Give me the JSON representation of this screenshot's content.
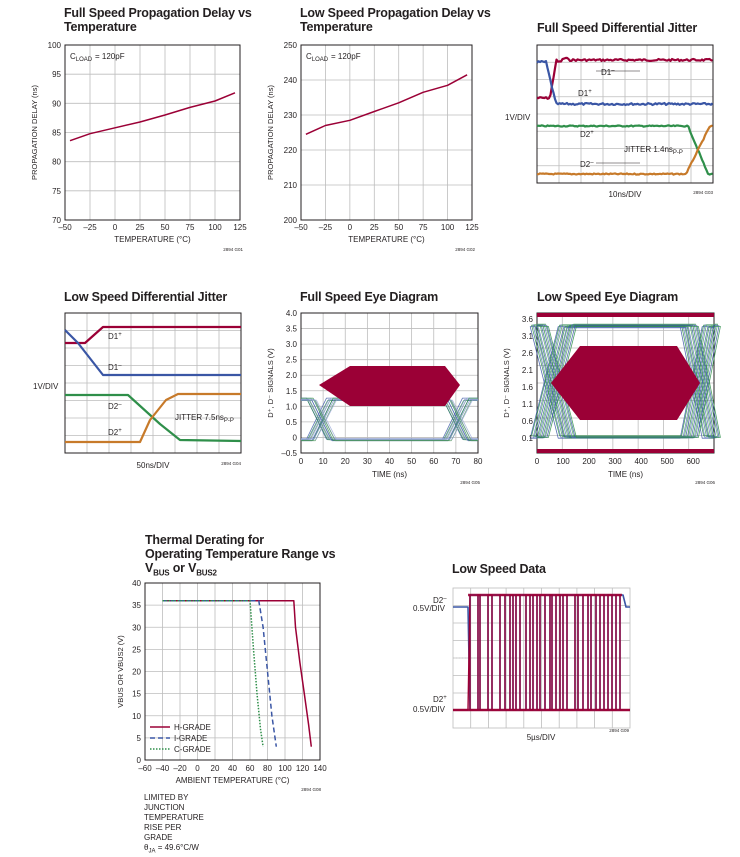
{
  "colors": {
    "red": "#9b0036",
    "blue": "#3a56a5",
    "green": "#2f8f4a",
    "orange": "#c77a2a",
    "grid": "#bdbdbd",
    "dark": "#231f20"
  },
  "c1": {
    "title_l1": "Full Speed Propagation Delay vs",
    "title_l2": "Temperature",
    "ylabel": "PROPAGATION DELAY (ns)",
    "xlabel": "TEMPERATURE (°C)",
    "cload": "C",
    "cload_sub": "LOAD",
    "cload_val": " = 120pF",
    "code": "2894 G01",
    "xticks": [
      "–50",
      "–25",
      "0",
      "25",
      "50",
      "75",
      "100",
      "125"
    ],
    "yticks": [
      "70",
      "75",
      "80",
      "85",
      "90",
      "95",
      "100"
    ]
  },
  "c2": {
    "title_l1": "Low Speed Propagation Delay vs",
    "title_l2": "Temperature",
    "ylabel": "PROPAGATION DELAY (ns)",
    "xlabel": "TEMPERATURE (°C)",
    "cload": "C",
    "cload_sub": "LOAD",
    "cload_val": " = 120pF",
    "code": "2894 G02",
    "xticks": [
      "–50",
      "–25",
      "0",
      "25",
      "50",
      "75",
      "100",
      "125"
    ],
    "yticks": [
      "200",
      "210",
      "220",
      "230",
      "240",
      "250"
    ]
  },
  "c3": {
    "title": "Full Speed Differential Jitter",
    "vdiv": "1V/DIV",
    "tdiv": "10ns/DIV",
    "d1m": "D1",
    "d1m_sup": "–",
    "d1p": "D1",
    "d1p_sup": "+",
    "d2p": "D2",
    "d2p_sup": "+",
    "d2m": "D2",
    "d2m_sup": "–",
    "jit": "JITTER 1.4ns",
    "jit_sub": "P-P",
    "code": "2894 G03"
  },
  "c4": {
    "title": "Low Speed Differential Jitter",
    "vdiv": "1V/DIV",
    "tdiv": "50ns/DIV",
    "d1p": "D1",
    "d1p_sup": "+",
    "d1m": "D1",
    "d1m_sup": "–",
    "d2m": "D2",
    "d2m_sup": "–",
    "d2p": "D2",
    "d2p_sup": "+",
    "jit": "JITTER 7.5ns",
    "jit_sub": "P-P",
    "code": "2894 G04"
  },
  "c5": {
    "title": "Full Speed Eye Diagram",
    "ylabel": "D⁺, D⁻ SIGNALS (V)",
    "xlabel": "TIME (ns)",
    "code": "2894 G05",
    "xticks": [
      "0",
      "10",
      "20",
      "30",
      "40",
      "50",
      "60",
      "70",
      "80"
    ],
    "yticks": [
      "–0.5",
      "0",
      "0.5",
      "1.0",
      "1.5",
      "2.0",
      "2.5",
      "3.0",
      "3.5",
      "4.0"
    ]
  },
  "c6": {
    "title": "Low Speed Eye Diagram",
    "ylabel": "D⁺, D⁻ SIGNALS (V)",
    "xlabel": "TIME (ns)",
    "code": "2894 G06",
    "xticks": [
      "0",
      "100",
      "200",
      "300",
      "400",
      "500",
      "600"
    ],
    "yticks": [
      "0.1",
      "0.6",
      "1.1",
      "1.6",
      "2.1",
      "2.6",
      "3.1",
      "3.6"
    ]
  },
  "c7": {
    "title_l1": "Thermal Derating for",
    "title_l2": "Operating Temperature Range vs",
    "title_l3a": "V",
    "title_l3a_sub": "BUS",
    "title_l3b": " or V",
    "title_l3b_sub": "BUS2",
    "ylabel": "VBUS OR VBUS2 (V)",
    "xlabel": "AMBIENT TEMPERATURE (°C)",
    "code": "2894 G08",
    "xticks": [
      "–60",
      "–40",
      "–20",
      "0",
      "20",
      "40",
      "60",
      "80",
      "100",
      "120",
      "140"
    ],
    "yticks": [
      "0",
      "5",
      "10",
      "15",
      "20",
      "25",
      "30",
      "35",
      "40"
    ],
    "legend": [
      "H-GRADE",
      "I-GRADE",
      "C-GRADE"
    ],
    "foot1": "LIMITED BY JUNCTION",
    "foot2": "TEMPERATURE RISE PER GRADE",
    "foot3a": "θ",
    "foot3a_sub": "JA",
    "foot3b": " = 49.6°C/W"
  },
  "c8": {
    "title": "Low Speed Data",
    "d2m": "D2",
    "d2m_sup": "–",
    "d2p": "D2",
    "d2p_sup": "+",
    "vdiv1": "0.5V/DIV",
    "vdiv2": "0.5V/DIV",
    "tdiv": "5µs/DIV",
    "code": "2894 G09"
  },
  "chart_data": [
    {
      "type": "line",
      "title": "Full Speed Propagation Delay vs Temperature",
      "xlabel": "TEMPERATURE (°C)",
      "ylabel": "PROPAGATION DELAY (ns)",
      "xlim": [
        -50,
        125
      ],
      "ylim": [
        70,
        100
      ],
      "grid": true,
      "series": [
        {
          "x": [
            -45,
            -25,
            0,
            25,
            50,
            75,
            100,
            120
          ],
          "values": [
            83.6,
            84.8,
            85.8,
            86.8,
            88.0,
            89.3,
            90.4,
            91.8
          ]
        }
      ]
    },
    {
      "type": "line",
      "title": "Low Speed Propagation Delay vs Temperature",
      "xlabel": "TEMPERATURE (°C)",
      "ylabel": "PROPAGATION DELAY (ns)",
      "xlim": [
        -50,
        125
      ],
      "ylim": [
        200,
        250
      ],
      "grid": true,
      "series": [
        {
          "x": [
            -45,
            -25,
            0,
            25,
            50,
            75,
            100,
            120
          ],
          "values": [
            224.5,
            227.0,
            228.5,
            231.0,
            233.5,
            236.5,
            238.5,
            241.5
          ]
        }
      ]
    },
    {
      "type": "line",
      "title": "Thermal Derating for Operating Temperature Range vs VBUS or VBUS2",
      "xlabel": "AMBIENT TEMPERATURE (°C)",
      "ylabel": "VBUS OR VBUS2 (V)",
      "xlim": [
        -60,
        140
      ],
      "ylim": [
        0,
        40
      ],
      "grid": true,
      "series": [
        {
          "name": "H-GRADE",
          "x": [
            -40,
            110,
            112,
            117,
            122,
            127,
            130
          ],
          "values": [
            36,
            36,
            30,
            22,
            15,
            8,
            3
          ]
        },
        {
          "name": "I-GRADE",
          "x": [
            -40,
            70,
            75,
            80,
            85,
            90
          ],
          "values": [
            36,
            36,
            30,
            20,
            10,
            3
          ]
        },
        {
          "name": "C-GRADE",
          "x": [
            -40,
            60,
            64,
            68,
            72,
            75
          ],
          "values": [
            36,
            36,
            25,
            15,
            7,
            3
          ]
        }
      ]
    }
  ]
}
